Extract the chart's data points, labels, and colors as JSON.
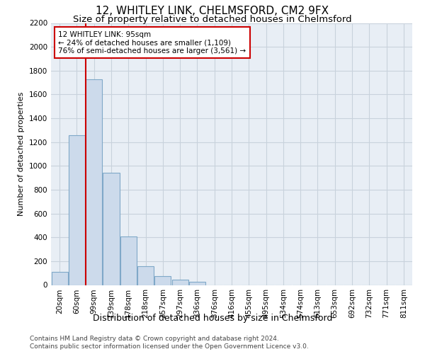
{
  "title1": "12, WHITLEY LINK, CHELMSFORD, CM2 9FX",
  "title2": "Size of property relative to detached houses in Chelmsford",
  "xlabel": "Distribution of detached houses by size in Chelmsford",
  "ylabel": "Number of detached properties",
  "footnote1": "Contains HM Land Registry data © Crown copyright and database right 2024.",
  "footnote2": "Contains public sector information licensed under the Open Government Licence v3.0.",
  "categories": [
    "20sqm",
    "60sqm",
    "99sqm",
    "139sqm",
    "178sqm",
    "218sqm",
    "257sqm",
    "297sqm",
    "336sqm",
    "376sqm",
    "416sqm",
    "455sqm",
    "495sqm",
    "534sqm",
    "574sqm",
    "613sqm",
    "653sqm",
    "692sqm",
    "732sqm",
    "771sqm",
    "811sqm"
  ],
  "values": [
    110,
    1260,
    1730,
    940,
    410,
    155,
    75,
    45,
    25,
    0,
    0,
    0,
    0,
    0,
    0,
    0,
    0,
    0,
    0,
    0,
    0
  ],
  "bar_color": "#ccdaeb",
  "bar_edge_color": "#7fa8c8",
  "vline_x_idx": 1.5,
  "vline_color": "#cc0000",
  "annotation_line1": "12 WHITLEY LINK: 95sqm",
  "annotation_line2": "← 24% of detached houses are smaller (1,109)",
  "annotation_line3": "76% of semi-detached houses are larger (3,561) →",
  "annotation_box_color": "#cc0000",
  "ylim": [
    0,
    2200
  ],
  "yticks": [
    0,
    200,
    400,
    600,
    800,
    1000,
    1200,
    1400,
    1600,
    1800,
    2000,
    2200
  ],
  "grid_color": "#c8d2dc",
  "bg_color": "#e8eef5",
  "title1_fontsize": 11,
  "title2_fontsize": 9.5,
  "ylabel_fontsize": 8,
  "xlabel_fontsize": 9,
  "tick_fontsize": 7.5,
  "annot_fontsize": 7.5,
  "footnote_fontsize": 6.5
}
